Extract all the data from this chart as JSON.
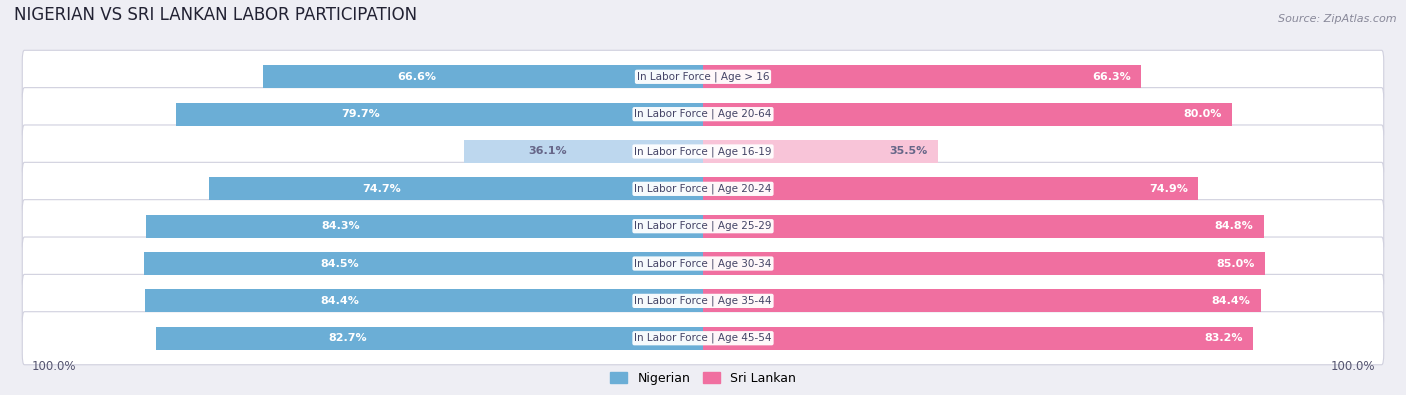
{
  "title": "NIGERIAN VS SRI LANKAN LABOR PARTICIPATION",
  "source": "Source: ZipAtlas.com",
  "categories": [
    "In Labor Force | Age > 16",
    "In Labor Force | Age 20-64",
    "In Labor Force | Age 16-19",
    "In Labor Force | Age 20-24",
    "In Labor Force | Age 25-29",
    "In Labor Force | Age 30-34",
    "In Labor Force | Age 35-44",
    "In Labor Force | Age 45-54"
  ],
  "nigerian": [
    66.6,
    79.7,
    36.1,
    74.7,
    84.3,
    84.5,
    84.4,
    82.7
  ],
  "srilankan": [
    66.3,
    80.0,
    35.5,
    74.9,
    84.8,
    85.0,
    84.4,
    83.2
  ],
  "nigerian_color": "#6BAED6",
  "nigerian_color_light": "#BDD7EE",
  "srilankan_color": "#F06FA0",
  "srilankan_color_light": "#F8C4D8",
  "label_color_dark": "#666688",
  "background_color": "#eeeef4",
  "max_val": 100.0,
  "legend_nigerian": "Nigerian",
  "legend_srilankan": "Sri Lankan"
}
